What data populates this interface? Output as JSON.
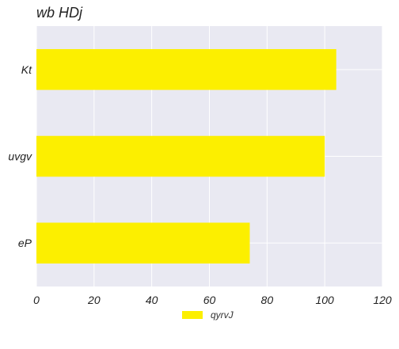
{
  "chart_data": {
    "type": "bar",
    "orientation": "horizontal",
    "title": "wb HDj",
    "categories": [
      "Kt",
      "uvgv",
      "eP"
    ],
    "series": [
      {
        "name": "qyrvJ",
        "values": [
          104,
          100,
          74
        ]
      }
    ],
    "xlabel": "",
    "ylabel": "",
    "xlim": [
      0,
      120
    ],
    "xticks": [
      0,
      20,
      40,
      60,
      80,
      100,
      120
    ],
    "grid": true,
    "legend_position": "bottom-center",
    "colors": {
      "bar": "#FCEF00",
      "plot_bg": "#E9E9F2",
      "grid": "#FFFFFF",
      "text": "#222222"
    }
  }
}
